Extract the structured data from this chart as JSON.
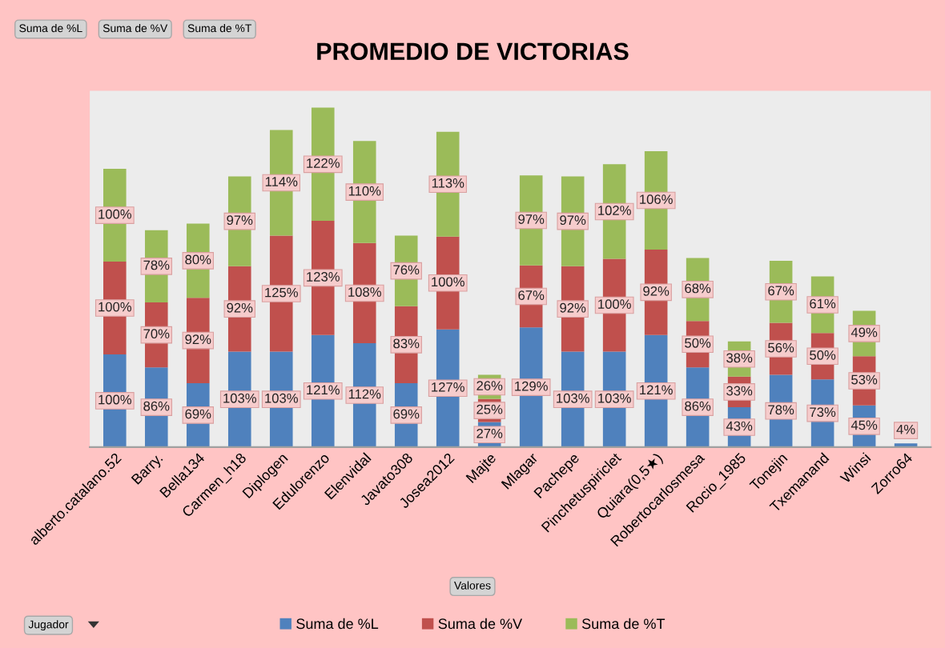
{
  "chart_data": {
    "type": "bar",
    "title": "PROMEDIO DE VICTORIAS",
    "categories": [
      "alberto.catalano.52",
      "Barry.",
      "Bella134",
      "Carmen_h18",
      "Diplogen",
      "Edulorenzo",
      "Elenvidal",
      "Javato308",
      "Josea2012",
      "Majte",
      "Mlagar",
      "Pachepe",
      "Pinchetuspiriclet",
      "Quiara(0,5★)",
      "Robertocarlosmesa",
      "Rocio_1985",
      "Tonejin",
      "Txemanand",
      "Winsi",
      "Zorro64"
    ],
    "stacked": true,
    "series": [
      {
        "name": "Suma de %L",
        "color": "#4f81bd",
        "values": [
          100,
          86,
          69,
          103,
          103,
          121,
          112,
          69,
          127,
          27,
          129,
          103,
          103,
          121,
          86,
          43,
          78,
          73,
          45,
          4
        ],
        "value_labels": [
          "100%",
          "86%",
          "69%",
          "103%",
          "103%",
          "121%",
          "112%",
          "69%",
          "127%",
          "27%",
          "129%",
          "103%",
          "103%",
          "121%",
          "86%",
          "43%",
          "78%",
          "73%",
          "45%",
          "4%"
        ]
      },
      {
        "name": "Suma de %V",
        "color": "#c0504d",
        "values": [
          100,
          70,
          92,
          92,
          125,
          123,
          108,
          83,
          100,
          25,
          67,
          92,
          100,
          92,
          50,
          33,
          56,
          50,
          53,
          null
        ],
        "value_labels": [
          "100%",
          "70%",
          "92%",
          "92%",
          "125%",
          "123%",
          "108%",
          "83%",
          "100%",
          "25%",
          "67%",
          "92%",
          "100%",
          "92%",
          "50%",
          "33%",
          "56%",
          "50%",
          "53%",
          null
        ]
      },
      {
        "name": "Suma de %T",
        "color": "#9bbb59",
        "values": [
          100,
          78,
          80,
          97,
          114,
          122,
          110,
          76,
          113,
          26,
          97,
          97,
          102,
          106,
          68,
          38,
          67,
          61,
          49,
          null
        ],
        "value_labels": [
          "100%",
          "78%",
          "80%",
          "97%",
          "114%",
          "122%",
          "110%",
          "76%",
          "113%",
          "26%",
          "97%",
          "97%",
          "102%",
          "106%",
          "68%",
          "38%",
          "67%",
          "61%",
          "49%",
          null
        ]
      }
    ],
    "annotations": [
      "Suma de %L",
      "Suma de %V",
      "Suma de %T",
      "Valores",
      "Jugador"
    ],
    "legend": "bottom",
    "tick_labels": "x"
  }
}
